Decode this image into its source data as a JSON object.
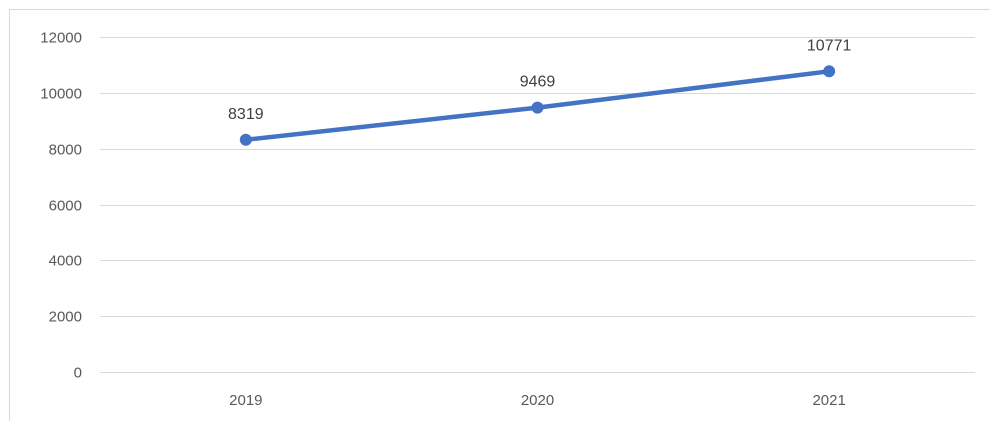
{
  "chart_data": {
    "type": "line",
    "categories": [
      "2019",
      "2020",
      "2021"
    ],
    "series": [
      {
        "values": [
          8319,
          9469,
          10771
        ]
      }
    ],
    "data_labels": [
      "8319",
      "9469",
      "10771"
    ],
    "ylim": [
      0,
      12000
    ],
    "yticks": [
      0,
      2000,
      4000,
      6000,
      8000,
      10000,
      12000
    ],
    "ytick_labels": [
      "0",
      "2000",
      "4000",
      "6000",
      "8000",
      "10000",
      "12000"
    ],
    "grid": true,
    "legend": "none",
    "title": "",
    "xlabel": "",
    "ylabel": ""
  },
  "colors": {
    "line": "#4472C4",
    "gridline": "#D9D9D9",
    "frame": "#D9D9D9",
    "tick_text": "#595959",
    "label_text": "#404040"
  }
}
